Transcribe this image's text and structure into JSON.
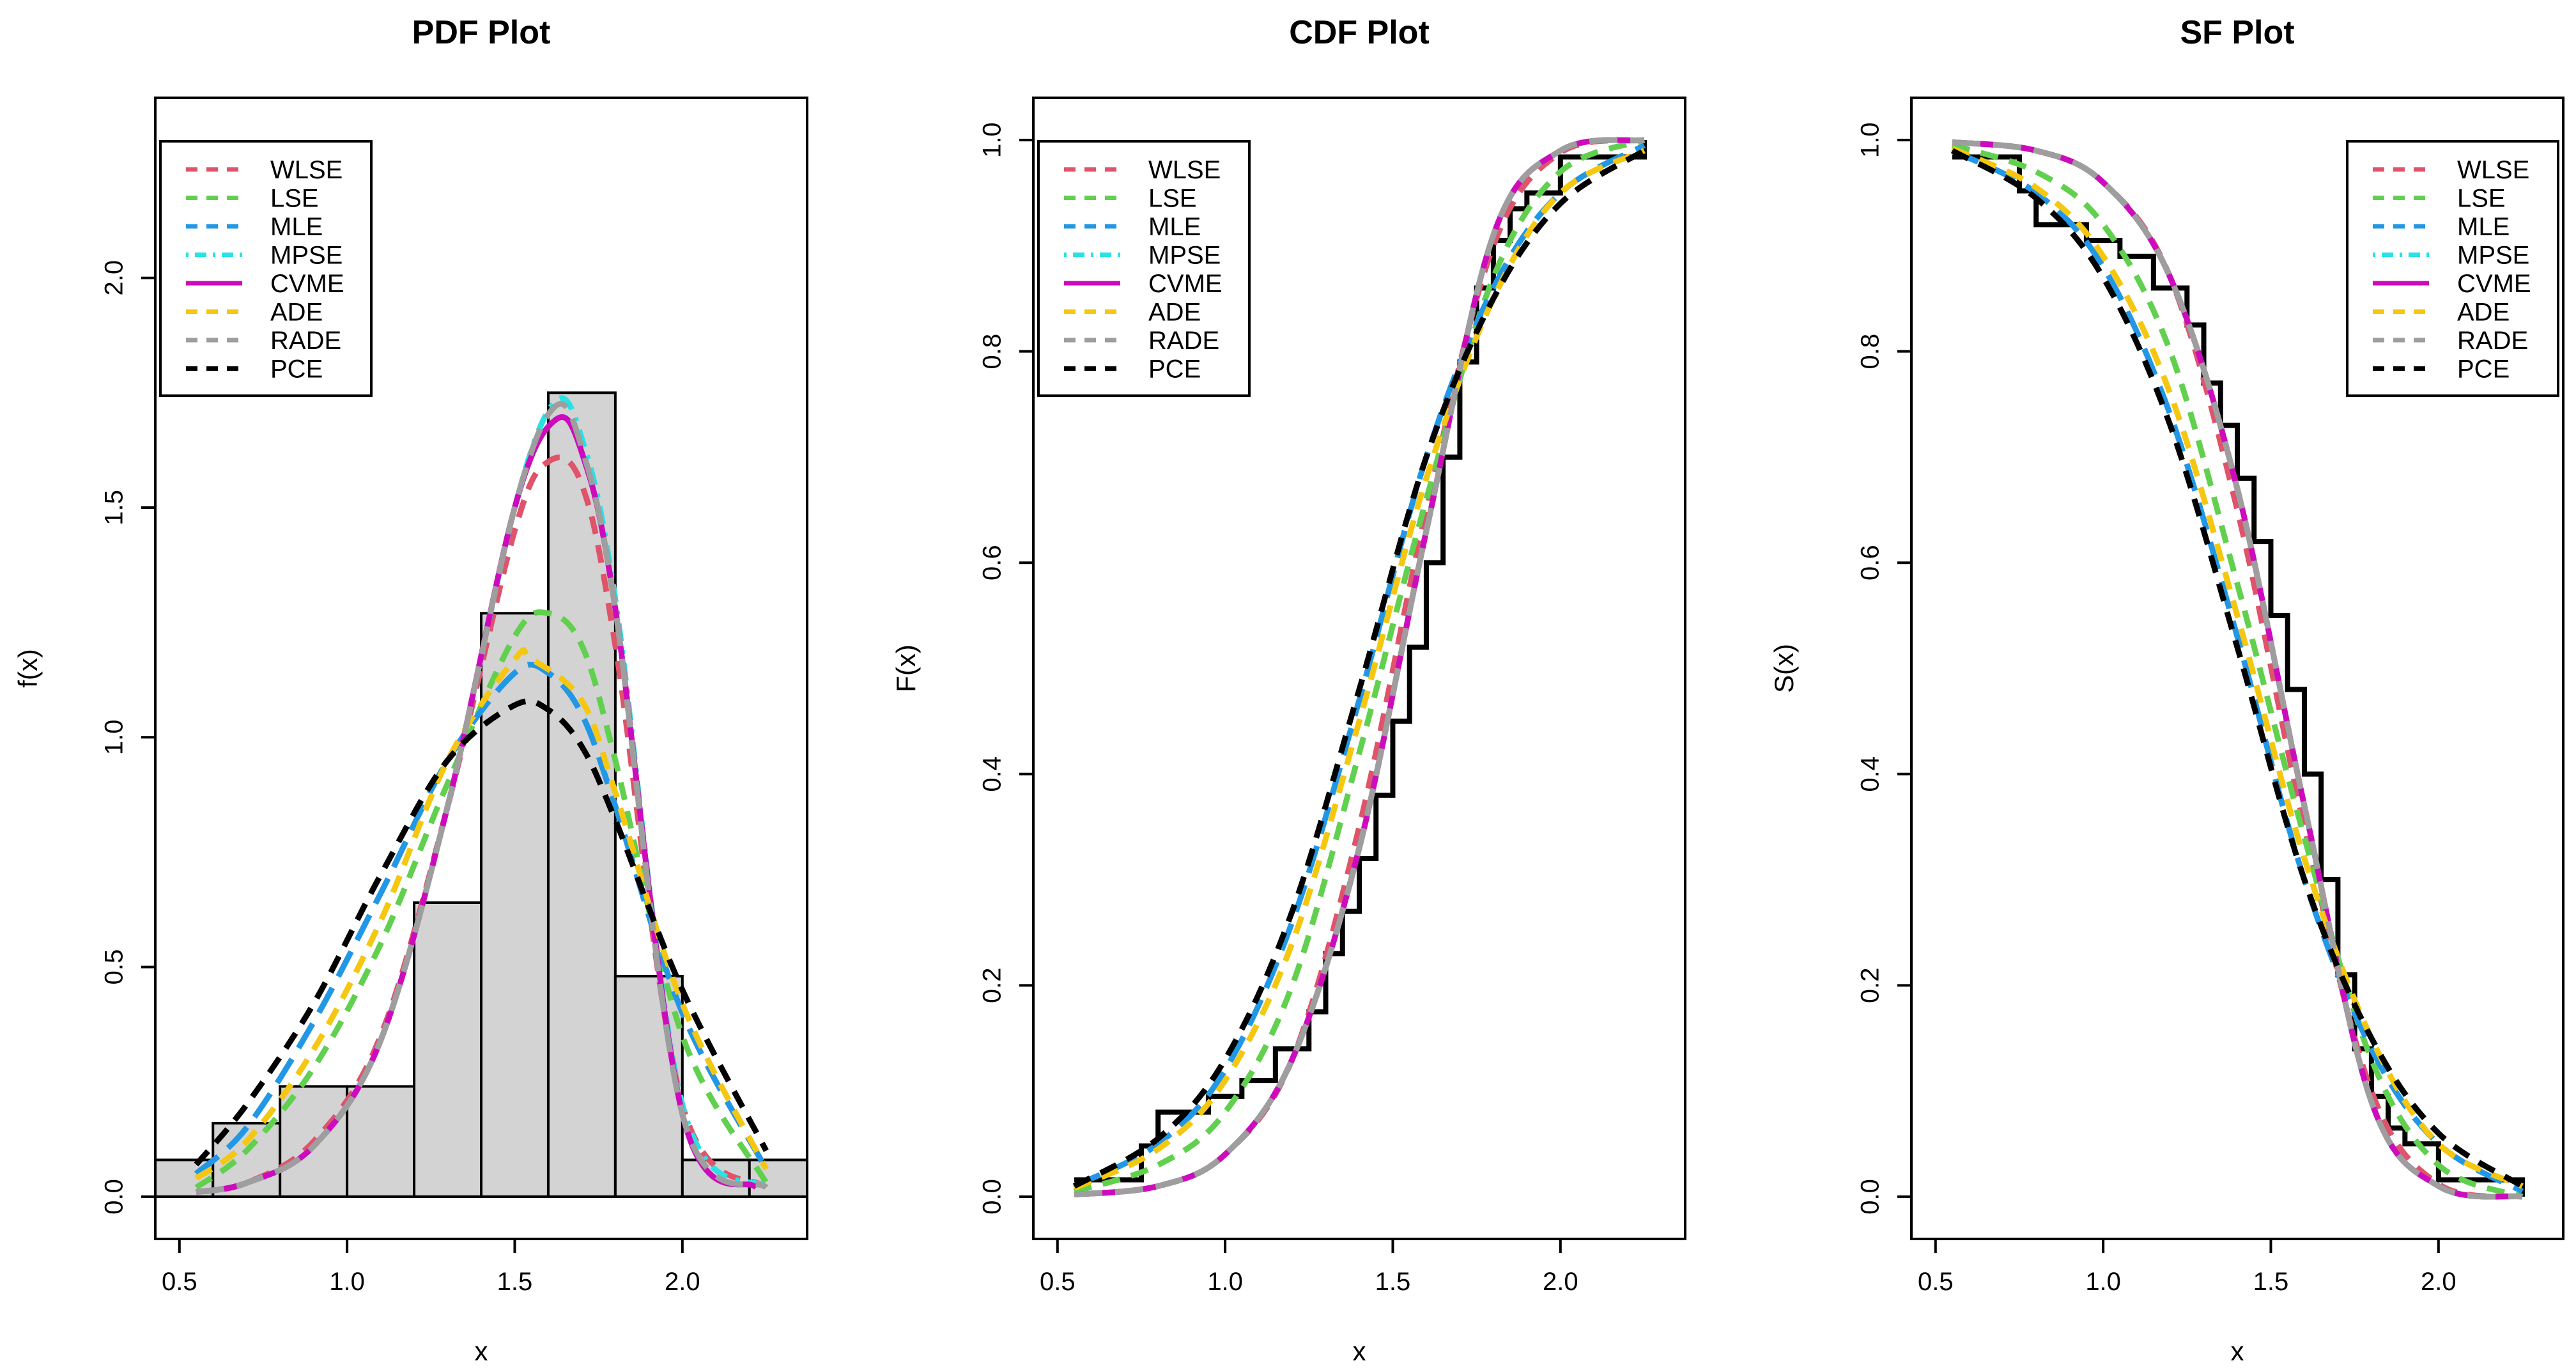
{
  "chart_data": [
    {
      "type": "histogram-with-density-curves",
      "title": "PDF Plot",
      "xlabel": "x",
      "ylabel": "f(x)",
      "xlim": [
        0.5,
        2.3
      ],
      "ylim": [
        0,
        2.3
      ],
      "xticks": [
        "0.5",
        "1.0",
        "1.5",
        "2.0"
      ],
      "yticks": [
        "0.0",
        "0.5",
        "1.0",
        "1.5",
        "2.0"
      ],
      "legend_position": "top-left",
      "histogram": {
        "breaks": [
          0.4,
          0.6,
          0.8,
          1.0,
          1.2,
          1.4,
          1.6,
          1.8,
          2.0,
          2.2,
          2.4
        ],
        "densities": [
          0.08,
          0.16,
          0.24,
          0.24,
          0.64,
          1.27,
          1.75,
          0.48,
          0.08,
          0.08
        ]
      },
      "series": [
        {
          "name": "WLSE",
          "x": [
            0.55,
            0.7,
            0.9,
            1.1,
            1.3,
            1.5,
            1.6,
            1.7,
            1.8,
            2.0,
            2.25
          ],
          "y": [
            0.01,
            0.03,
            0.12,
            0.35,
            0.85,
            1.45,
            1.6,
            1.55,
            1.2,
            0.2,
            0.02
          ]
        },
        {
          "name": "LSE",
          "x": [
            0.55,
            0.7,
            0.9,
            1.1,
            1.3,
            1.5,
            1.6,
            1.7,
            1.8,
            2.0,
            2.25
          ],
          "y": [
            0.02,
            0.1,
            0.28,
            0.55,
            0.9,
            1.22,
            1.27,
            1.2,
            0.95,
            0.35,
            0.03
          ]
        },
        {
          "name": "MLE",
          "x": [
            0.55,
            0.7,
            0.9,
            1.1,
            1.3,
            1.5,
            1.6,
            1.7,
            1.8,
            2.0,
            2.25
          ],
          "y": [
            0.05,
            0.15,
            0.38,
            0.66,
            0.95,
            1.14,
            1.14,
            1.05,
            0.85,
            0.4,
            0.06
          ]
        },
        {
          "name": "MPSE",
          "x": [
            0.55,
            0.7,
            0.9,
            1.1,
            1.3,
            1.5,
            1.62,
            1.7,
            1.8,
            2.0,
            2.25
          ],
          "y": [
            0.01,
            0.03,
            0.11,
            0.34,
            0.85,
            1.5,
            1.73,
            1.65,
            1.3,
            0.2,
            0.02
          ]
        },
        {
          "name": "CVME",
          "x": [
            0.55,
            0.7,
            0.9,
            1.1,
            1.3,
            1.5,
            1.62,
            1.7,
            1.8,
            2.0,
            2.22
          ],
          "y": [
            0.01,
            0.03,
            0.11,
            0.34,
            0.85,
            1.5,
            1.69,
            1.62,
            1.28,
            0.18,
            0.02
          ]
        },
        {
          "name": "ADE",
          "x": [
            0.55,
            0.7,
            0.9,
            1.1,
            1.3,
            1.5,
            1.55,
            1.7,
            1.8,
            2.0,
            2.25
          ],
          "y": [
            0.04,
            0.12,
            0.32,
            0.6,
            0.95,
            1.17,
            1.17,
            1.08,
            0.88,
            0.42,
            0.06
          ]
        },
        {
          "name": "RADE",
          "x": [
            0.55,
            0.7,
            0.9,
            1.1,
            1.3,
            1.5,
            1.62,
            1.7,
            1.8,
            2.0,
            2.25
          ],
          "y": [
            0.01,
            0.03,
            0.11,
            0.34,
            0.85,
            1.5,
            1.72,
            1.63,
            1.28,
            0.18,
            0.02
          ]
        },
        {
          "name": "PCE",
          "x": [
            0.55,
            0.7,
            0.9,
            1.1,
            1.3,
            1.5,
            1.6,
            1.7,
            1.8,
            2.0,
            2.25
          ],
          "y": [
            0.07,
            0.2,
            0.42,
            0.7,
            0.95,
            1.07,
            1.06,
            0.98,
            0.82,
            0.45,
            0.1
          ]
        }
      ]
    },
    {
      "type": "line",
      "title": "CDF Plot",
      "xlabel": "x",
      "ylabel": "F(x)",
      "xlim": [
        0.5,
        2.3
      ],
      "ylim": [
        0,
        1
      ],
      "xticks": [
        "0.5",
        "1.0",
        "1.5",
        "2.0"
      ],
      "yticks": [
        "0.0",
        "0.2",
        "0.4",
        "0.6",
        "0.8",
        "1.0"
      ],
      "legend_position": "top-left",
      "empirical_step": {
        "x": [
          0.55,
          0.75,
          0.8,
          0.85,
          0.95,
          1.05,
          1.15,
          1.25,
          1.3,
          1.35,
          1.4,
          1.45,
          1.5,
          1.55,
          1.6,
          1.65,
          1.7,
          1.75,
          1.8,
          1.85,
          1.9,
          2.0,
          2.25
        ],
        "y": [
          0.016,
          0.048,
          0.08,
          0.08,
          0.095,
          0.11,
          0.14,
          0.175,
          0.23,
          0.27,
          0.32,
          0.38,
          0.45,
          0.52,
          0.6,
          0.7,
          0.79,
          0.86,
          0.905,
          0.935,
          0.95,
          0.984,
          1.0
        ]
      },
      "series": [
        {
          "name": "WLSE",
          "x": [
            0.55,
            0.8,
            1.0,
            1.2,
            1.4,
            1.6,
            1.8,
            2.0,
            2.25
          ],
          "y": [
            0.002,
            0.01,
            0.04,
            0.13,
            0.35,
            0.65,
            0.9,
            0.988,
            1.0
          ]
        },
        {
          "name": "LSE",
          "x": [
            0.55,
            0.8,
            1.0,
            1.2,
            1.4,
            1.6,
            1.8,
            2.0,
            2.25
          ],
          "y": [
            0.005,
            0.03,
            0.08,
            0.2,
            0.42,
            0.66,
            0.87,
            0.97,
            1.0
          ]
        },
        {
          "name": "MLE",
          "x": [
            0.55,
            0.8,
            1.0,
            1.2,
            1.4,
            1.6,
            1.8,
            2.0,
            2.25
          ],
          "y": [
            0.01,
            0.05,
            0.12,
            0.26,
            0.47,
            0.7,
            0.86,
            0.95,
            0.995
          ]
        },
        {
          "name": "MPSE",
          "x": [
            0.55,
            0.8,
            1.0,
            1.2,
            1.4,
            1.6,
            1.8,
            2.0,
            2.25
          ],
          "y": [
            0.002,
            0.01,
            0.04,
            0.13,
            0.33,
            0.63,
            0.91,
            0.99,
            1.0
          ]
        },
        {
          "name": "CVME",
          "x": [
            0.55,
            0.8,
            1.0,
            1.2,
            1.4,
            1.6,
            1.8,
            2.0,
            2.25
          ],
          "y": [
            0.002,
            0.01,
            0.04,
            0.13,
            0.33,
            0.63,
            0.91,
            0.99,
            1.0
          ]
        },
        {
          "name": "ADE",
          "x": [
            0.55,
            0.8,
            1.0,
            1.2,
            1.4,
            1.6,
            1.8,
            2.0,
            2.25
          ],
          "y": [
            0.008,
            0.045,
            0.11,
            0.24,
            0.45,
            0.68,
            0.85,
            0.95,
            0.99
          ]
        },
        {
          "name": "RADE",
          "x": [
            0.55,
            0.8,
            1.0,
            1.2,
            1.4,
            1.6,
            1.8,
            2.0,
            2.25
          ],
          "y": [
            0.002,
            0.01,
            0.04,
            0.13,
            0.33,
            0.63,
            0.91,
            0.99,
            1.0
          ]
        },
        {
          "name": "PCE",
          "x": [
            0.55,
            0.8,
            1.0,
            1.2,
            1.4,
            1.6,
            1.8,
            2.0,
            2.25
          ],
          "y": [
            0.01,
            0.055,
            0.13,
            0.27,
            0.48,
            0.7,
            0.85,
            0.94,
            0.99
          ]
        }
      ]
    },
    {
      "type": "line",
      "title": "SF Plot",
      "xlabel": "x",
      "ylabel": "S(x)",
      "xlim": [
        0.5,
        2.3
      ],
      "ylim": [
        0,
        1
      ],
      "xticks": [
        "0.5",
        "1.0",
        "1.5",
        "2.0"
      ],
      "yticks": [
        "0.0",
        "0.2",
        "0.4",
        "0.6",
        "0.8",
        "1.0"
      ],
      "legend_position": "top-right",
      "empirical_step": {
        "x": [
          0.55,
          0.75,
          0.8,
          0.85,
          0.95,
          1.05,
          1.15,
          1.25,
          1.3,
          1.35,
          1.4,
          1.45,
          1.5,
          1.55,
          1.6,
          1.65,
          1.7,
          1.75,
          1.8,
          1.85,
          1.9,
          2.0,
          2.25
        ],
        "y": [
          0.984,
          0.952,
          0.92,
          0.92,
          0.905,
          0.89,
          0.86,
          0.825,
          0.77,
          0.73,
          0.68,
          0.62,
          0.55,
          0.48,
          0.4,
          0.3,
          0.21,
          0.14,
          0.095,
          0.065,
          0.05,
          0.016,
          0.0
        ]
      },
      "series": [
        {
          "name": "WLSE",
          "x": [
            0.55,
            0.8,
            1.0,
            1.2,
            1.4,
            1.6,
            1.8,
            2.0,
            2.25
          ],
          "y": [
            0.998,
            0.99,
            0.96,
            0.87,
            0.65,
            0.35,
            0.1,
            0.012,
            0.0
          ]
        },
        {
          "name": "LSE",
          "x": [
            0.55,
            0.8,
            1.0,
            1.2,
            1.4,
            1.6,
            1.8,
            2.0,
            2.25
          ],
          "y": [
            0.995,
            0.97,
            0.92,
            0.8,
            0.58,
            0.34,
            0.13,
            0.03,
            0.0
          ]
        },
        {
          "name": "MLE",
          "x": [
            0.55,
            0.8,
            1.0,
            1.2,
            1.4,
            1.6,
            1.8,
            2.0,
            2.25
          ],
          "y": [
            0.99,
            0.95,
            0.88,
            0.74,
            0.53,
            0.3,
            0.14,
            0.05,
            0.005
          ]
        },
        {
          "name": "MPSE",
          "x": [
            0.55,
            0.8,
            1.0,
            1.2,
            1.4,
            1.6,
            1.8,
            2.0,
            2.25
          ],
          "y": [
            0.998,
            0.99,
            0.96,
            0.87,
            0.67,
            0.37,
            0.09,
            0.01,
            0.0
          ]
        },
        {
          "name": "CVME",
          "x": [
            0.55,
            0.8,
            1.0,
            1.2,
            1.4,
            1.6,
            1.8,
            2.0,
            2.25
          ],
          "y": [
            0.998,
            0.99,
            0.96,
            0.87,
            0.67,
            0.37,
            0.09,
            0.01,
            0.0
          ]
        },
        {
          "name": "ADE",
          "x": [
            0.55,
            0.8,
            1.0,
            1.2,
            1.4,
            1.6,
            1.8,
            2.0,
            2.25
          ],
          "y": [
            0.992,
            0.955,
            0.89,
            0.76,
            0.55,
            0.32,
            0.15,
            0.05,
            0.01
          ]
        },
        {
          "name": "RADE",
          "x": [
            0.55,
            0.8,
            1.0,
            1.2,
            1.4,
            1.6,
            1.8,
            2.0,
            2.25
          ],
          "y": [
            0.998,
            0.99,
            0.96,
            0.87,
            0.67,
            0.37,
            0.09,
            0.01,
            0.0
          ]
        },
        {
          "name": "PCE",
          "x": [
            0.55,
            0.8,
            1.0,
            1.2,
            1.4,
            1.6,
            1.8,
            2.0,
            2.25
          ],
          "y": [
            0.99,
            0.945,
            0.87,
            0.73,
            0.52,
            0.3,
            0.15,
            0.06,
            0.01
          ]
        }
      ]
    }
  ],
  "series_styles": {
    "WLSE": {
      "color": "#DF536B",
      "dash": "short"
    },
    "LSE": {
      "color": "#61D04F",
      "dash": "short"
    },
    "MLE": {
      "color": "#2297E6",
      "dash": "long"
    },
    "MPSE": {
      "color": "#28E2E5",
      "dash": "dotdash"
    },
    "CVME": {
      "color": "#CD0BBC",
      "dash": "solid"
    },
    "ADE": {
      "color": "#F5C710",
      "dash": "short"
    },
    "RADE": {
      "color": "#9E9E9E",
      "dash": "long"
    },
    "PCE": {
      "color": "#000000",
      "dash": "short"
    }
  },
  "histogram_fill": "#D3D3D3"
}
